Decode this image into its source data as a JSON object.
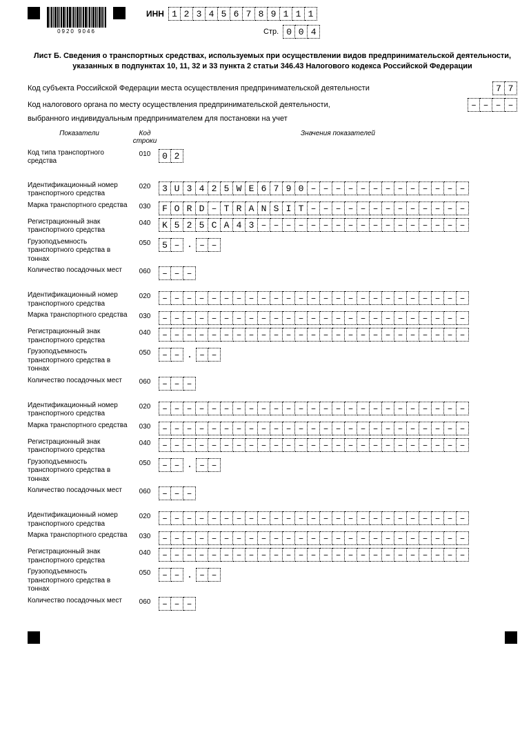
{
  "barcode_numbers": "0920  9046",
  "inn_label": "ИНН",
  "inn": [
    "1",
    "2",
    "3",
    "4",
    "5",
    "6",
    "7",
    "8",
    "9",
    "1",
    "1",
    "1"
  ],
  "page_label": "Стр.",
  "page": [
    "0",
    "0",
    "4"
  ],
  "title": "Лист Б. Сведения о транспортных средствах, используемых при осуществлении видов предпринимательской деятельности, указанных в подпунктах 10, 11, 32 и 33 пункта 2 статьи 346.43 Налогового кодекса Российской Федерации",
  "subject_code_label": "Код субъекта Российской Федерации места осуществления предпринимательской деятельности",
  "subject_code": [
    "7",
    "7"
  ],
  "tax_auth_label1": "Код налогового органа по месту осуществления предпринимательской деятельности,",
  "tax_auth_label2": "выбранного индивидуальным предпринимателем для постановки на учет",
  "tax_auth_code": [
    "",
    "",
    "",
    ""
  ],
  "header_indicators": "Показатели",
  "header_code": "Код строки",
  "header_values": "Значения показателей",
  "row_labels": {
    "r010": "Код типа транспортного средства",
    "r020": "Идентификационный номер транспортного средства",
    "r030": "Марка транспортного средства",
    "r040": "Регистрационный знак транспортного средства",
    "r050": "Грузоподъемность транспортного средства в тоннах",
    "r060": "Количество посадочных мест"
  },
  "codes": {
    "r010": "010",
    "r020": "020",
    "r030": "030",
    "r040": "040",
    "r050": "050",
    "r060": "060"
  },
  "block1": {
    "r010": [
      "0",
      "2"
    ],
    "r020": [
      "3",
      "U",
      "3",
      "4",
      "2",
      "5",
      "W",
      "E",
      "6",
      "7",
      "9",
      "0",
      "",
      "",
      "",
      "",
      "",
      "",
      "",
      "",
      "",
      "",
      "",
      "",
      ""
    ],
    "r030": [
      "F",
      "O",
      "R",
      "D",
      "",
      "T",
      "R",
      "A",
      "N",
      "S",
      "I",
      "T",
      "",
      "",
      "",
      "",
      "",
      "",
      "",
      "",
      "",
      "",
      "",
      "",
      ""
    ],
    "r040": [
      "K",
      "5",
      "2",
      "5",
      "C",
      "A",
      "4",
      "3",
      "",
      "",
      "",
      "",
      "",
      "",
      "",
      "",
      "",
      "",
      "",
      "",
      "",
      "",
      "",
      "",
      ""
    ],
    "r050_int": [
      "5",
      ""
    ],
    "r050_dec": [
      "",
      ""
    ],
    "r060": [
      "",
      "",
      ""
    ]
  },
  "empty_block": {
    "r020": [
      "",
      "",
      "",
      "",
      "",
      "",
      "",
      "",
      "",
      "",
      "",
      "",
      "",
      "",
      "",
      "",
      "",
      "",
      "",
      "",
      "",
      "",
      "",
      "",
      ""
    ],
    "r030": [
      "",
      "",
      "",
      "",
      "",
      "",
      "",
      "",
      "",
      "",
      "",
      "",
      "",
      "",
      "",
      "",
      "",
      "",
      "",
      "",
      "",
      "",
      "",
      "",
      ""
    ],
    "r040": [
      "",
      "",
      "",
      "",
      "",
      "",
      "",
      "",
      "",
      "",
      "",
      "",
      "",
      "",
      "",
      "",
      "",
      "",
      "",
      "",
      "",
      "",
      "",
      "",
      ""
    ],
    "r050_int": [
      "",
      ""
    ],
    "r050_dec": [
      "",
      ""
    ],
    "r060": [
      "",
      "",
      ""
    ]
  }
}
